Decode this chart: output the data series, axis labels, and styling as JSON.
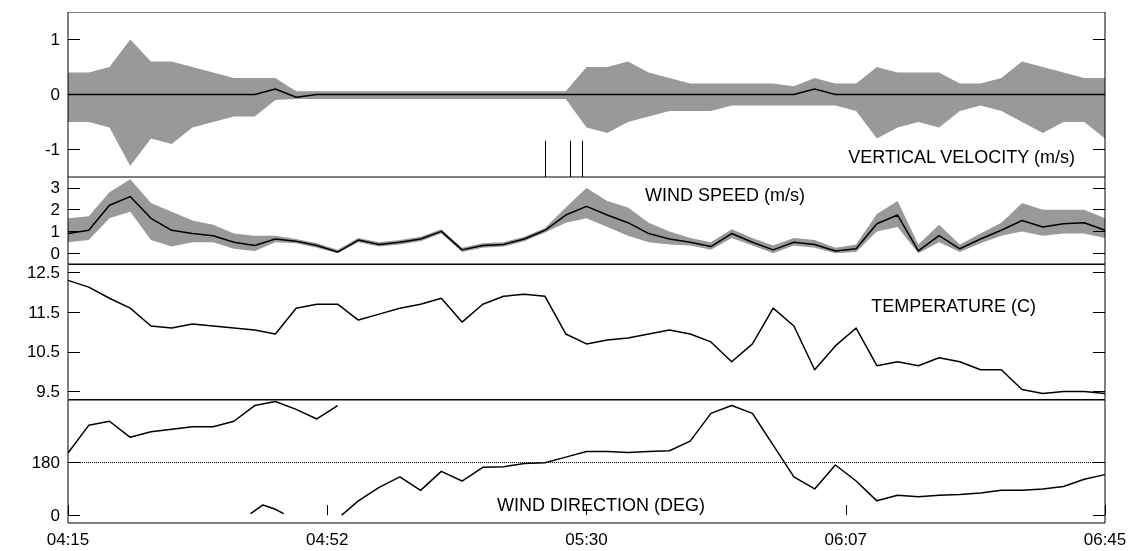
{
  "chart_data": [
    {
      "type": "line",
      "title": "VERTICAL VELOCITY (m/s)",
      "tick_labels": "y",
      "xlim": [
        4.25,
        6.75
      ],
      "ylim": [
        -1.5,
        1.5
      ],
      "yticks": [
        -1,
        0,
        1
      ],
      "x": [
        4.25,
        4.3,
        4.35,
        4.4,
        4.45,
        4.5,
        4.55,
        4.6,
        4.65,
        4.7,
        4.75,
        4.8,
        4.85,
        4.9,
        4.95,
        5,
        5.05,
        5.1,
        5.15,
        5.2,
        5.25,
        5.3,
        5.35,
        5.4,
        5.45,
        5.5,
        5.55,
        5.6,
        5.65,
        5.7,
        5.75,
        5.8,
        5.85,
        5.9,
        5.95,
        6,
        6.05,
        6.1,
        6.15,
        6.2,
        6.25,
        6.3,
        6.35,
        6.4,
        6.45,
        6.5,
        6.55,
        6.6,
        6.65,
        6.7,
        6.75
      ],
      "series": [
        {
          "color": "#000000",
          "values": [
            0,
            0,
            0,
            0,
            0,
            0,
            0,
            0,
            0,
            0,
            0.1,
            -0.05,
            0,
            0,
            0,
            0,
            0,
            0,
            0,
            0,
            0,
            0,
            0,
            0,
            0,
            0,
            0,
            0,
            0,
            0,
            0,
            0,
            0,
            0,
            0,
            0,
            0.1,
            0,
            0,
            0,
            0,
            0,
            0,
            0,
            0,
            0,
            0,
            0,
            0,
            0,
            0
          ],
          "lower": [
            -0.5,
            -0.5,
            -0.6,
            -1.3,
            -0.8,
            -0.9,
            -0.6,
            -0.5,
            -0.4,
            -0.4,
            -0.1,
            -0.08,
            -0.08,
            -0.08,
            -0.08,
            -0.08,
            -0.08,
            -0.08,
            -0.08,
            -0.08,
            -0.08,
            -0.08,
            -0.08,
            -0.08,
            -0.08,
            -0.6,
            -0.7,
            -0.5,
            -0.4,
            -0.3,
            -0.3,
            -0.3,
            -0.2,
            -0.2,
            -0.2,
            -0.2,
            -0.2,
            -0.2,
            -0.3,
            -0.8,
            -0.6,
            -0.5,
            -0.6,
            -0.3,
            -0.2,
            -0.3,
            -0.5,
            -0.7,
            -0.5,
            -0.5,
            -0.8
          ],
          "upper": [
            0.4,
            0.4,
            0.5,
            1.0,
            0.6,
            0.6,
            0.5,
            0.4,
            0.3,
            0.3,
            0.3,
            0.06,
            0.06,
            0.06,
            0.06,
            0.06,
            0.06,
            0.06,
            0.06,
            0.06,
            0.06,
            0.06,
            0.06,
            0.06,
            0.06,
            0.5,
            0.5,
            0.6,
            0.4,
            0.3,
            0.2,
            0.2,
            0.2,
            0.2,
            0.2,
            0.15,
            0.3,
            0.2,
            0.2,
            0.5,
            0.4,
            0.4,
            0.4,
            0.2,
            0.2,
            0.3,
            0.6,
            0.5,
            0.4,
            0.3,
            0.3
          ]
        }
      ],
      "ref_lines": [
        {
          "axis": "x",
          "value": 5.4
        },
        {
          "axis": "x",
          "value": 5.46
        },
        {
          "axis": "x",
          "value": 5.49
        }
      ]
    },
    {
      "type": "line",
      "title": "WIND SPEED (m/s)",
      "tick_labels": "y",
      "xlim": [
        4.25,
        6.75
      ],
      "ylim": [
        -0.5,
        3.5
      ],
      "yticks": [
        0,
        1,
        2,
        3
      ],
      "x": [
        4.25,
        4.3,
        4.35,
        4.4,
        4.45,
        4.5,
        4.55,
        4.6,
        4.65,
        4.7,
        4.75,
        4.8,
        4.85,
        4.9,
        4.95,
        5,
        5.05,
        5.1,
        5.15,
        5.2,
        5.25,
        5.3,
        5.35,
        5.4,
        5.45,
        5.5,
        5.55,
        5.6,
        5.65,
        5.7,
        5.75,
        5.8,
        5.85,
        5.9,
        5.95,
        6,
        6.05,
        6.1,
        6.15,
        6.2,
        6.25,
        6.3,
        6.35,
        6.4,
        6.45,
        6.5,
        6.55,
        6.6,
        6.65,
        6.7,
        6.75
      ],
      "series": [
        {
          "color": "#000000",
          "values": [
            0.9,
            1.05,
            2.2,
            2.6,
            1.6,
            1.05,
            0.9,
            0.8,
            0.5,
            0.35,
            0.65,
            0.55,
            0.35,
            0.05,
            0.6,
            0.4,
            0.5,
            0.65,
            1.0,
            0.15,
            0.35,
            0.4,
            0.65,
            1.05,
            1.75,
            2.15,
            1.75,
            1.4,
            0.9,
            0.65,
            0.5,
            0.3,
            0.9,
            0.5,
            0.15,
            0.5,
            0.4,
            0.1,
            0.2,
            1.35,
            1.75,
            0.1,
            0.8,
            0.2,
            0.65,
            1.05,
            1.5,
            1.2,
            1.35,
            1.4,
            1.05
          ],
          "lower": [
            0.5,
            0.6,
            1.6,
            1.9,
            0.6,
            0.3,
            0.5,
            0.5,
            0.2,
            0.1,
            0.5,
            0.45,
            0.25,
            0,
            0.5,
            0.3,
            0.4,
            0.55,
            0.9,
            0.05,
            0.25,
            0.3,
            0.55,
            0.95,
            1.4,
            1.6,
            1.2,
            0.8,
            0.5,
            0.4,
            0.35,
            0.15,
            0.7,
            0.35,
            0,
            0.35,
            0.25,
            0,
            0.05,
            1.0,
            1.2,
            0,
            0.5,
            0.05,
            0.45,
            0.8,
            1.0,
            0.8,
            0.9,
            0.9,
            0.7
          ],
          "upper": [
            1.6,
            1.7,
            2.8,
            3.4,
            2.3,
            1.9,
            1.5,
            1.3,
            0.9,
            0.8,
            0.8,
            0.65,
            0.45,
            0.15,
            0.7,
            0.5,
            0.6,
            0.75,
            1.1,
            0.25,
            0.45,
            0.5,
            0.75,
            1.15,
            2.1,
            3.0,
            2.4,
            2.1,
            1.4,
            1.0,
            0.7,
            0.5,
            1.1,
            0.7,
            0.35,
            0.7,
            0.6,
            0.25,
            0.4,
            1.8,
            2.4,
            0.4,
            1.3,
            0.4,
            0.9,
            1.4,
            2.3,
            2.0,
            2.0,
            2.0,
            1.6
          ]
        }
      ]
    },
    {
      "type": "line",
      "title": "TEMPERATURE (C)",
      "tick_labels": "y",
      "xlim": [
        4.25,
        6.75
      ],
      "ylim": [
        9.3,
        12.7
      ],
      "yticks": [
        9.5,
        10.5,
        11.5,
        12.5
      ],
      "x": [
        4.25,
        4.3,
        4.35,
        4.4,
        4.45,
        4.5,
        4.55,
        4.6,
        4.65,
        4.7,
        4.75,
        4.8,
        4.85,
        4.9,
        4.95,
        5,
        5.05,
        5.1,
        5.15,
        5.2,
        5.25,
        5.3,
        5.35,
        5.4,
        5.45,
        5.5,
        5.55,
        5.6,
        5.65,
        5.7,
        5.75,
        5.8,
        5.85,
        5.9,
        5.95,
        6,
        6.05,
        6.1,
        6.15,
        6.2,
        6.25,
        6.3,
        6.35,
        6.4,
        6.45,
        6.5,
        6.55,
        6.6,
        6.65,
        6.7,
        6.75
      ],
      "series": [
        {
          "color": "#000000",
          "values": [
            12.3,
            12.13,
            11.85,
            11.6,
            11.15,
            11.1,
            11.2,
            11.15,
            11.1,
            11.05,
            10.95,
            11.6,
            11.7,
            11.7,
            11.3,
            11.45,
            11.6,
            11.7,
            11.85,
            11.25,
            11.7,
            11.9,
            11.95,
            11.9,
            10.95,
            10.7,
            10.8,
            10.85,
            10.95,
            11.05,
            10.95,
            10.75,
            10.25,
            10.7,
            11.6,
            11.15,
            10.05,
            10.65,
            11.1,
            10.15,
            10.25,
            10.15,
            10.35,
            10.25,
            10.05,
            10.05,
            9.55,
            9.45,
            9.5,
            9.5,
            9.45
          ]
        }
      ]
    },
    {
      "type": "line",
      "title": "WIND DIRECTION (DEG)",
      "xlim": [
        4.25,
        6.75
      ],
      "xticks": [
        {
          "value": 4.25,
          "label": "04:15"
        },
        {
          "value": 4.875,
          "label": "04:52"
        },
        {
          "value": 5.5,
          "label": "05:30"
        },
        {
          "value": 6.125,
          "label": "06:07"
        },
        {
          "value": 6.75,
          "label": "06:45"
        }
      ],
      "ylim": [
        -27,
        395
      ],
      "yticks": [
        0,
        180
      ],
      "series": [
        {
          "color": "#000000",
          "x": [
            4.25,
            4.3,
            4.35,
            4.4,
            4.45,
            4.5,
            4.55,
            4.6,
            4.65,
            4.7,
            4.75,
            4.8,
            4.85,
            4.9,
            4.905,
            4.91,
            4.95,
            5,
            5.05,
            5.1,
            5.15,
            5.2,
            5.25,
            5.3,
            5.35,
            5.4,
            5.45,
            5.5,
            5.55,
            5.6,
            5.65,
            5.7,
            5.75,
            5.8,
            5.85,
            5.9,
            5.95,
            6,
            6.05,
            6.1,
            6.15,
            6.2,
            6.25,
            6.3,
            6.35,
            6.4,
            6.45,
            6.5,
            6.55,
            6.6,
            6.65,
            6.7,
            6.75
          ],
          "values": [
            213,
            308,
            322,
            267,
            286,
            295,
            303,
            303,
            322,
            376,
            390,
            363,
            330,
            376,
            null,
            0,
            49,
            95,
            131,
            85,
            150,
            117,
            164,
            166,
            177,
            180,
            199,
            218,
            218,
            215,
            218,
            221,
            254,
            349,
            376,
            349,
            240,
            131,
            90,
            172,
            117,
            49,
            68,
            63,
            68,
            71,
            76,
            85,
            85,
            90,
            98,
            123,
            139
          ]
        },
        {
          "color": "#000000",
          "x": [
            4.69,
            4.72,
            4.75,
            4.77
          ],
          "values": [
            5,
            35,
            20,
            5
          ]
        }
      ],
      "ref_lines": [
        {
          "axis": "y",
          "value": 180,
          "line_style": "dotted"
        }
      ]
    }
  ]
}
